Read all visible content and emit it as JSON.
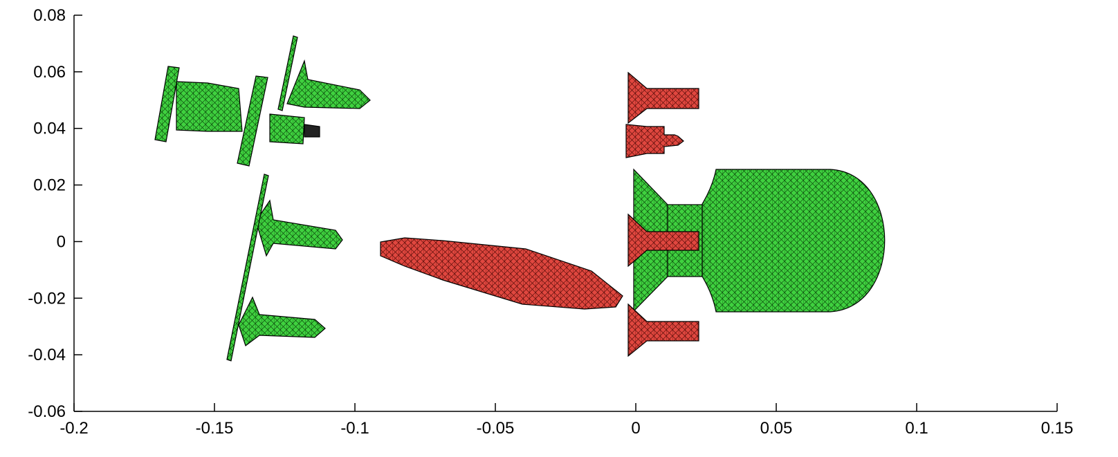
{
  "chart_data": {
    "type": "patch",
    "xlim": [
      -0.2,
      0.15
    ],
    "xticks": [
      -0.2,
      -0.15,
      -0.1,
      -0.05,
      0,
      0.05,
      0.1,
      0.15
    ],
    "ylim": [
      -0.06,
      0.08
    ],
    "yticks": [
      -0.06,
      -0.04,
      -0.02,
      0,
      0.02,
      0.04,
      0.06,
      0.08
    ]
  }
}
